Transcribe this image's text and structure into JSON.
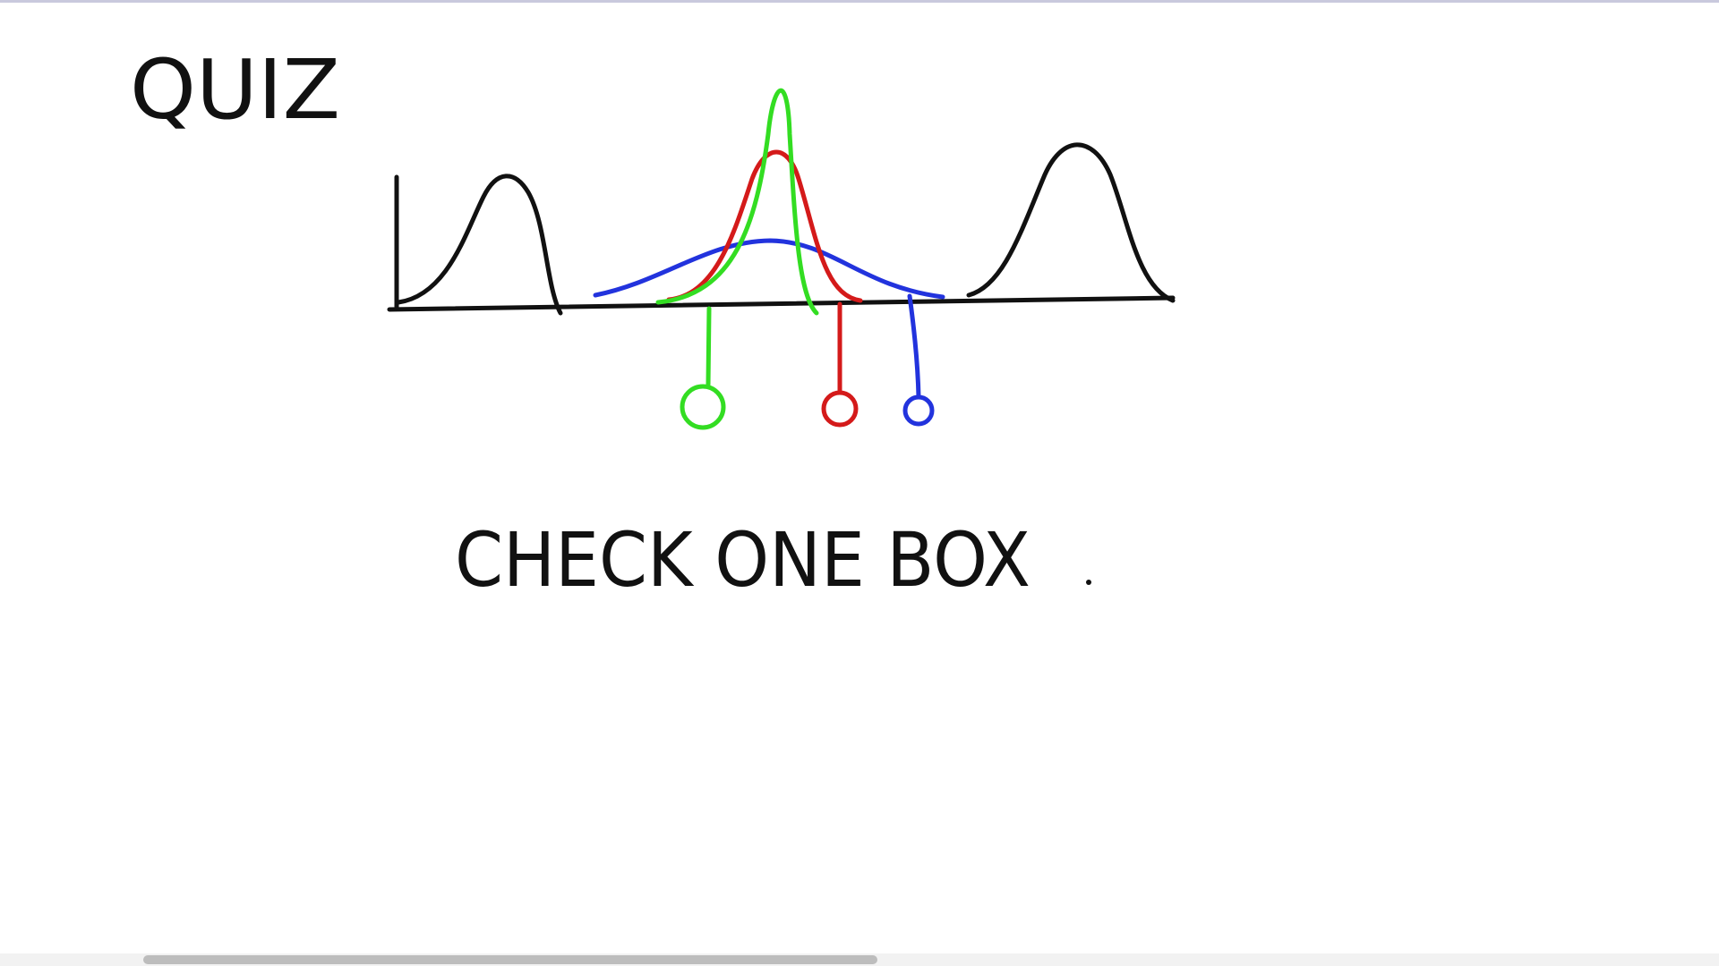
{
  "header": {
    "title": "QUIZ"
  },
  "prompt": {
    "text": "CHECK ONE BOX"
  }
}
